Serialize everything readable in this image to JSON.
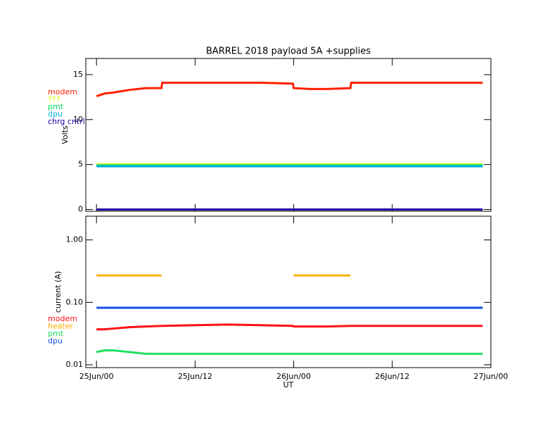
{
  "chart_data": [
    {
      "type": "line",
      "title": "BARREL 2018 payload 5A +supplies",
      "ylabel": "Volts",
      "x": [
        0,
        1,
        2,
        4,
        6,
        7.9,
        8,
        12,
        16,
        20,
        23.9,
        24,
        26,
        28,
        30.9,
        31,
        36,
        40,
        44,
        47
      ],
      "xlim": [
        -1.3,
        48
      ],
      "ylim": [
        -0.2,
        16.8
      ],
      "yticks": [
        0,
        5,
        10,
        15
      ],
      "series": [
        {
          "name": "modem",
          "color": "#ff2000",
          "values": [
            12.6,
            12.9,
            13.0,
            13.3,
            13.5,
            13.5,
            14.1,
            14.1,
            14.1,
            14.1,
            14.0,
            13.5,
            13.4,
            13.4,
            13.5,
            14.1,
            14.1,
            14.1,
            14.1,
            14.1
          ]
        },
        {
          "name": "???",
          "color": "#c8ff00",
          "values": [
            5.0,
            5.0,
            5.0,
            5.0,
            5.0,
            5.0,
            5.0,
            5.0,
            5.0,
            5.0,
            5.0,
            5.0,
            5.0,
            5.0,
            5.0,
            5.0,
            5.0,
            5.0,
            5.0,
            5.0
          ]
        },
        {
          "name": "pmt",
          "color": "#00e060",
          "values": [
            4.9,
            4.9,
            4.9,
            4.9,
            4.9,
            4.9,
            4.9,
            4.9,
            4.9,
            4.9,
            4.9,
            4.9,
            4.9,
            4.9,
            4.9,
            4.9,
            4.9,
            4.9,
            4.9,
            4.9
          ]
        },
        {
          "name": "dpu",
          "color": "#00b0e0",
          "values": [
            4.8,
            4.8,
            4.8,
            4.8,
            4.8,
            4.8,
            4.8,
            4.8,
            4.8,
            4.8,
            4.8,
            4.8,
            4.8,
            4.8,
            4.8,
            4.8,
            4.8,
            4.8,
            4.8,
            4.8
          ]
        },
        {
          "name": "chrg cntrl",
          "color": "#2000a0",
          "values": [
            0,
            0,
            0,
            0,
            0,
            0,
            0,
            0,
            0,
            0,
            0,
            0,
            0,
            0,
            0,
            0,
            0,
            0,
            0,
            0
          ]
        }
      ]
    },
    {
      "type": "line",
      "ylabel": "current (A)",
      "xlabel": "UT",
      "log_y": true,
      "x": [
        0,
        1,
        2,
        4,
        6,
        7.9,
        8,
        12,
        16,
        20,
        23.9,
        24,
        26,
        28,
        30.9,
        31,
        36,
        40,
        44,
        47
      ],
      "xlim": [
        -1.3,
        48
      ],
      "ylim": [
        0.009,
        2.4
      ],
      "xticks": [
        {
          "value": 0,
          "label": "25Jun/00"
        },
        {
          "value": 12,
          "label": "25Jun/12"
        },
        {
          "value": 24,
          "label": "26Jun/00"
        },
        {
          "value": 36,
          "label": "26Jun/12"
        },
        {
          "value": 48,
          "label": "27Jun/00"
        }
      ],
      "yticks": [
        {
          "value": 0.01,
          "label": "0.01"
        },
        {
          "value": 0.1,
          "label": "0.10"
        },
        {
          "value": 1,
          "label": "1.00"
        }
      ],
      "series": [
        {
          "name": "modem",
          "color": "#ff1010",
          "values": [
            0.037,
            0.037,
            0.038,
            0.04,
            0.041,
            0.042,
            0.042,
            0.043,
            0.044,
            0.043,
            0.042,
            0.041,
            0.041,
            0.041,
            0.042,
            0.042,
            0.042,
            0.042,
            0.042,
            0.042
          ]
        },
        {
          "name": "heater",
          "color": "#ffb000",
          "values": [
            0.27,
            0.27,
            0.27,
            0.27,
            0.27,
            0.27,
            null,
            null,
            null,
            null,
            null,
            0.27,
            0.27,
            0.27,
            0.27,
            null,
            null,
            null,
            null,
            null
          ]
        },
        {
          "name": "pmt",
          "color": "#20e060",
          "values": [
            0.016,
            0.017,
            0.017,
            0.016,
            0.015,
            0.015,
            0.015,
            0.015,
            0.015,
            0.015,
            0.015,
            0.015,
            0.015,
            0.015,
            0.015,
            0.015,
            0.015,
            0.015,
            0.015,
            0.015
          ]
        },
        {
          "name": "dpu",
          "color": "#1050e0",
          "values": [
            0.082,
            0.082,
            0.082,
            0.082,
            0.082,
            0.082,
            0.082,
            0.082,
            0.082,
            0.082,
            0.082,
            0.082,
            0.082,
            0.082,
            0.082,
            0.082,
            0.082,
            0.082,
            0.082,
            0.082
          ]
        }
      ]
    }
  ]
}
